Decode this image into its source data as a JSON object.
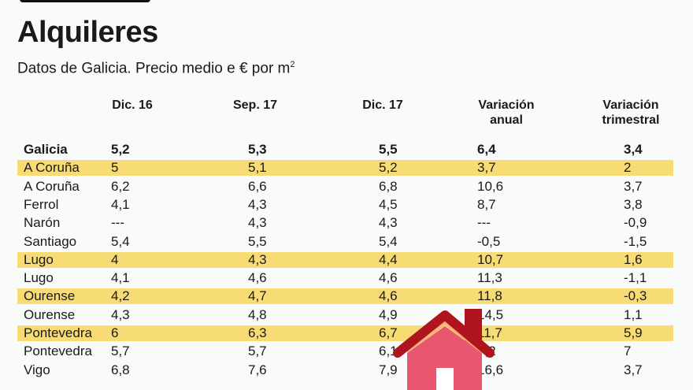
{
  "title": "Alquileres",
  "subtitle": "Datos de Galicia. Precio medio e € por m",
  "subtitle_sup": "2",
  "colors": {
    "highlight": "#f7dc76",
    "house_body": "#e8566f",
    "house_roof": "#b0141f"
  },
  "icons": {
    "house": "house-icon"
  },
  "chart_data": {
    "type": "table",
    "columns": [
      "Dic. 16",
      "Sep. 17",
      "Dic. 17",
      "Variación anual",
      "Variación trimestral"
    ],
    "header_lines": [
      [
        "Dic. 16"
      ],
      [
        "Sep. 17"
      ],
      [
        "Dic. 17"
      ],
      [
        "Variación",
        "anual"
      ],
      [
        "Variación",
        "trimestral"
      ]
    ],
    "rows": [
      {
        "name": "Galicia",
        "values": [
          "5,2",
          "5,3",
          "5,5",
          "6,4",
          "3,4"
        ],
        "bold": true,
        "highlight": false
      },
      {
        "name": "A Coruña",
        "values": [
          "5",
          "5,1",
          "5,2",
          "3,7",
          "2"
        ],
        "bold": false,
        "highlight": true
      },
      {
        "name": "A Coruña",
        "values": [
          "6,2",
          "6,6",
          "6,8",
          "10,6",
          "3,7"
        ],
        "bold": false,
        "highlight": false
      },
      {
        "name": "Ferrol",
        "values": [
          "4,1",
          "4,3",
          "4,5",
          "8,7",
          "3,8"
        ],
        "bold": false,
        "highlight": false
      },
      {
        "name": "Narón",
        "values": [
          "---",
          "4,3",
          "4,3",
          "---",
          "-0,9"
        ],
        "bold": false,
        "highlight": false
      },
      {
        "name": "Santiago",
        "values": [
          "5,4",
          "5,5",
          "5,4",
          "-0,5",
          "-1,5"
        ],
        "bold": false,
        "highlight": false
      },
      {
        "name": "Lugo",
        "values": [
          "4",
          "4,3",
          "4,4",
          "10,7",
          "1,6"
        ],
        "bold": false,
        "highlight": true
      },
      {
        "name": "Lugo",
        "values": [
          "4,1",
          "4,6",
          "4,6",
          "11,3",
          "-1,1"
        ],
        "bold": false,
        "highlight": false
      },
      {
        "name": "Ourense",
        "values": [
          "4,2",
          "4,7",
          "4,6",
          "11,8",
          "-0,3"
        ],
        "bold": false,
        "highlight": true
      },
      {
        "name": "Ourense",
        "values": [
          "4,3",
          "4,8",
          "4,9",
          "14,5",
          "1,1"
        ],
        "bold": false,
        "highlight": false
      },
      {
        "name": "Pontevedra",
        "values": [
          "6",
          "6,3",
          "6,7",
          "11,7",
          "5,9"
        ],
        "bold": false,
        "highlight": true
      },
      {
        "name": "Pontevedra",
        "values": [
          "5,7",
          "5,7",
          "6,1",
          "7,2",
          "7"
        ],
        "bold": false,
        "highlight": false
      },
      {
        "name": "Vigo",
        "values": [
          "6,8",
          "7,6",
          "7,9",
          "16,6",
          "3,7"
        ],
        "bold": false,
        "highlight": false
      }
    ]
  }
}
